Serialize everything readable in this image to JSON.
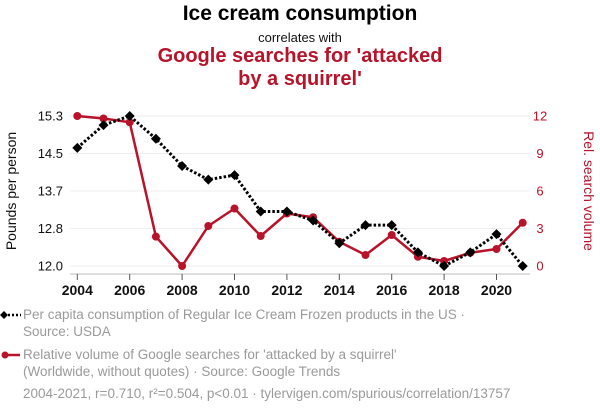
{
  "header": {
    "title": "Ice cream consumption",
    "connector": "correlates with",
    "subtitle_line1": "Google searches for 'attacked",
    "subtitle_line2": "by a squirrel'"
  },
  "colors": {
    "series1": "#000000",
    "series2": "#b8132a",
    "grid": "#eeeeee",
    "legend_text": "#9a9a9a"
  },
  "chart_data": {
    "type": "line",
    "title": "Ice cream consumption correlates with Google searches for 'attacked by a squirrel'",
    "xlabel": "",
    "x": [
      2004,
      2005,
      2006,
      2007,
      2008,
      2009,
      2010,
      2011,
      2012,
      2013,
      2014,
      2015,
      2016,
      2017,
      2018,
      2019,
      2020,
      2021
    ],
    "x_ticks": [
      "2004",
      "2006",
      "2008",
      "2010",
      "2012",
      "2014",
      "2016",
      "2018",
      "2020"
    ],
    "x_tick_values": [
      2004,
      2006,
      2008,
      2010,
      2012,
      2014,
      2016,
      2018,
      2020
    ],
    "xlim": [
      2003.7,
      2021.6
    ],
    "y_left": {
      "label": "Pounds per person",
      "ticks": [
        "12.0",
        "12.8",
        "13.7",
        "14.5",
        "15.3"
      ],
      "tick_values": [
        12.0,
        12.825,
        13.65,
        14.475,
        15.3
      ],
      "ylim": [
        12.0,
        15.3
      ]
    },
    "y_right": {
      "label": "Rel. search volume",
      "ticks": [
        "0",
        "3",
        "6",
        "9",
        "12"
      ],
      "tick_values": [
        0,
        3,
        6,
        9,
        12
      ],
      "ylim": [
        0,
        12
      ]
    },
    "grid": true,
    "series": [
      {
        "name": "Per capita consumption of Regular Ice Cream Frozen products in the US",
        "axis": "left",
        "style": "dotted",
        "marker": "diamond",
        "values": [
          14.6,
          15.1,
          15.3,
          14.8,
          14.2,
          13.9,
          14.0,
          13.2,
          13.2,
          13.0,
          12.5,
          12.9,
          12.9,
          12.3,
          12.0,
          12.3,
          12.7,
          12.0
        ]
      },
      {
        "name": "Relative volume of Google searches for 'attacked by a squirrel'",
        "axis": "right",
        "style": "solid",
        "marker": "circle",
        "values": [
          12.0,
          11.8,
          11.5,
          2.35,
          0.0,
          3.2,
          4.6,
          2.4,
          4.2,
          3.9,
          1.94,
          0.88,
          2.48,
          0.74,
          0.4,
          1.06,
          1.36,
          3.46
        ]
      }
    ]
  },
  "legend": {
    "series1_line1": "Per capita consumption of Regular Ice Cream Frozen products in the US ·",
    "series1_line2": "Source: USDA",
    "series2_line1": "Relative volume of Google searches for 'attacked by a squirrel'",
    "series2_line2": "(Worldwide, without quotes) · Source: Google Trends"
  },
  "footer": {
    "stats": "2004-2021, r=0.710, r²=0.504, p<0.01 · tylervigen.com/spurious/correlation/13757"
  }
}
